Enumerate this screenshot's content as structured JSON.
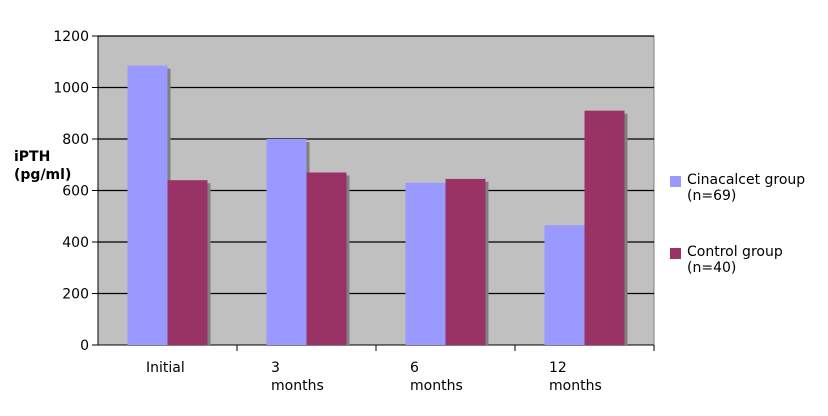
{
  "chart_data": {
    "type": "bar",
    "ylabel_lines": [
      "iPTH",
      "(pg/ml)"
    ],
    "xlabel": "",
    "categories": [
      [
        "Initial"
      ],
      [
        "3",
        "months"
      ],
      [
        "6",
        "months"
      ],
      [
        "12",
        "months"
      ]
    ],
    "series": [
      {
        "name_lines": [
          "Cinacalcet group",
          "(n=69)"
        ],
        "color": "#9999ff",
        "values": [
          1085,
          800,
          630,
          465
        ]
      },
      {
        "name_lines": [
          "Control group",
          "(n=40)"
        ],
        "color": "#993366",
        "values": [
          640,
          670,
          645,
          910
        ]
      }
    ],
    "ylim": [
      0,
      1200
    ],
    "yticks": [
      "0",
      "200",
      "400",
      "600",
      "800",
      "1000",
      "1200"
    ],
    "ytick_values": [
      0,
      200,
      400,
      600,
      800,
      1000,
      1200
    ],
    "plot_background": "#c0c0c0",
    "grid": true,
    "legend_position": "right"
  }
}
